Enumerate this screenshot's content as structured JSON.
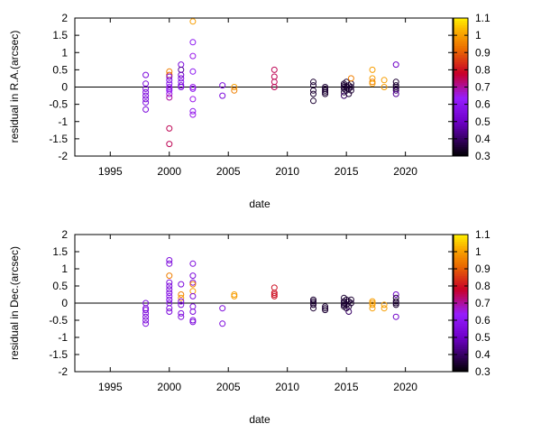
{
  "chart_data": [
    {
      "type": "scatter",
      "xlabel": "date",
      "ylabel": "residual in R.A.(arcsec)",
      "xlim": [
        1992,
        2024
      ],
      "ylim": [
        -2,
        2
      ],
      "xticks": [
        1995,
        2000,
        2005,
        2010,
        2015,
        2020
      ],
      "yticks": [
        -2,
        -1.5,
        -1,
        -0.5,
        0,
        0.5,
        1,
        1.5,
        2
      ],
      "zero_line": true,
      "grid": false,
      "colorbar": {
        "min": 0.3,
        "max": 1.1,
        "ticks": [
          0.3,
          0.4,
          0.5,
          0.6,
          0.7,
          0.8,
          0.9,
          1,
          1.1
        ],
        "placement": "right"
      },
      "points": [
        {
          "x": 1998.0,
          "y": 0.35,
          "c": 0.55
        },
        {
          "x": 1998.0,
          "y": 0.1,
          "c": 0.55
        },
        {
          "x": 1998.0,
          "y": -0.05,
          "c": 0.55
        },
        {
          "x": 1998.0,
          "y": -0.15,
          "c": 0.55
        },
        {
          "x": 1998.0,
          "y": -0.25,
          "c": 0.55
        },
        {
          "x": 1998.0,
          "y": -0.35,
          "c": 0.55
        },
        {
          "x": 1998.0,
          "y": -0.45,
          "c": 0.55
        },
        {
          "x": 1998.0,
          "y": -0.65,
          "c": 0.55
        },
        {
          "x": 2000.0,
          "y": 0.45,
          "c": 0.95
        },
        {
          "x": 2000.0,
          "y": 0.35,
          "c": 0.9
        },
        {
          "x": 2000.0,
          "y": 0.3,
          "c": 0.55
        },
        {
          "x": 2000.0,
          "y": 0.2,
          "c": 0.55
        },
        {
          "x": 2000.0,
          "y": 0.1,
          "c": 0.6
        },
        {
          "x": 2000.0,
          "y": 0.0,
          "c": 0.6
        },
        {
          "x": 2000.0,
          "y": -0.05,
          "c": 0.65
        },
        {
          "x": 2000.0,
          "y": -0.1,
          "c": 0.6
        },
        {
          "x": 2000.0,
          "y": -0.2,
          "c": 0.65
        },
        {
          "x": 2000.0,
          "y": -0.3,
          "c": 0.7
        },
        {
          "x": 2000.0,
          "y": -1.2,
          "c": 0.75
        },
        {
          "x": 2000.0,
          "y": -1.65,
          "c": 0.75
        },
        {
          "x": 2001.0,
          "y": 0.65,
          "c": 0.55
        },
        {
          "x": 2001.0,
          "y": 0.5,
          "c": 0.45
        },
        {
          "x": 2001.0,
          "y": 0.35,
          "c": 0.5
        },
        {
          "x": 2001.0,
          "y": 0.25,
          "c": 0.55
        },
        {
          "x": 2001.0,
          "y": 0.15,
          "c": 0.6
        },
        {
          "x": 2001.0,
          "y": 0.05,
          "c": 0.55
        },
        {
          "x": 2001.0,
          "y": 0.0,
          "c": 0.55
        },
        {
          "x": 2002.0,
          "y": 1.9,
          "c": 1.0
        },
        {
          "x": 2002.0,
          "y": 1.3,
          "c": 0.6
        },
        {
          "x": 2002.0,
          "y": 0.9,
          "c": 0.65
        },
        {
          "x": 2002.0,
          "y": 0.45,
          "c": 0.6
        },
        {
          "x": 2002.0,
          "y": 0.0,
          "c": 0.65
        },
        {
          "x": 2002.0,
          "y": -0.05,
          "c": 0.6
        },
        {
          "x": 2002.0,
          "y": -0.35,
          "c": 0.65
        },
        {
          "x": 2002.0,
          "y": -0.7,
          "c": 0.6
        },
        {
          "x": 2002.0,
          "y": -0.8,
          "c": 0.65
        },
        {
          "x": 2004.5,
          "y": 0.05,
          "c": 0.55
        },
        {
          "x": 2004.5,
          "y": -0.25,
          "c": 0.55
        },
        {
          "x": 2005.5,
          "y": 0.0,
          "c": 1.0
        },
        {
          "x": 2005.5,
          "y": -0.1,
          "c": 0.95
        },
        {
          "x": 2008.9,
          "y": 0.5,
          "c": 0.75
        },
        {
          "x": 2008.9,
          "y": 0.3,
          "c": 0.75
        },
        {
          "x": 2008.9,
          "y": 0.15,
          "c": 0.75
        },
        {
          "x": 2008.9,
          "y": 0.0,
          "c": 0.75
        },
        {
          "x": 2012.2,
          "y": 0.15,
          "c": 0.35
        },
        {
          "x": 2012.2,
          "y": 0.05,
          "c": 0.35
        },
        {
          "x": 2012.2,
          "y": -0.1,
          "c": 0.35
        },
        {
          "x": 2012.2,
          "y": -0.2,
          "c": 0.35
        },
        {
          "x": 2012.2,
          "y": -0.4,
          "c": 0.35
        },
        {
          "x": 2013.2,
          "y": 0.0,
          "c": 0.35
        },
        {
          "x": 2013.2,
          "y": -0.05,
          "c": 0.35
        },
        {
          "x": 2013.2,
          "y": -0.1,
          "c": 0.35
        },
        {
          "x": 2013.2,
          "y": -0.15,
          "c": 0.35
        },
        {
          "x": 2013.2,
          "y": -0.2,
          "c": 0.35
        },
        {
          "x": 2014.8,
          "y": 0.1,
          "c": 0.35
        },
        {
          "x": 2014.8,
          "y": 0.05,
          "c": 0.35
        },
        {
          "x": 2014.8,
          "y": 0.0,
          "c": 0.35
        },
        {
          "x": 2014.8,
          "y": -0.05,
          "c": 0.35
        },
        {
          "x": 2014.8,
          "y": -0.15,
          "c": 0.35
        },
        {
          "x": 2014.8,
          "y": -0.25,
          "c": 0.4
        },
        {
          "x": 2015.0,
          "y": 0.0,
          "c": 0.35
        },
        {
          "x": 2015.0,
          "y": -0.1,
          "c": 0.35
        },
        {
          "x": 2015.0,
          "y": 0.15,
          "c": 0.35
        },
        {
          "x": 2015.2,
          "y": 0.05,
          "c": 0.35
        },
        {
          "x": 2015.2,
          "y": -0.05,
          "c": 0.35
        },
        {
          "x": 2015.2,
          "y": -0.2,
          "c": 0.35
        },
        {
          "x": 2015.4,
          "y": 0.1,
          "c": 0.35
        },
        {
          "x": 2015.4,
          "y": 0.0,
          "c": 0.35
        },
        {
          "x": 2015.4,
          "y": -0.1,
          "c": 0.35
        },
        {
          "x": 2015.4,
          "y": 0.25,
          "c": 0.95
        },
        {
          "x": 2017.2,
          "y": 0.5,
          "c": 1.0
        },
        {
          "x": 2017.2,
          "y": 0.25,
          "c": 1.0
        },
        {
          "x": 2017.2,
          "y": 0.15,
          "c": 0.95
        },
        {
          "x": 2017.2,
          "y": 0.1,
          "c": 1.0
        },
        {
          "x": 2018.2,
          "y": 0.2,
          "c": 1.0
        },
        {
          "x": 2018.2,
          "y": 0.0,
          "c": 1.0
        },
        {
          "x": 2019.2,
          "y": 0.65,
          "c": 0.5
        },
        {
          "x": 2019.2,
          "y": 0.15,
          "c": 0.35
        },
        {
          "x": 2019.2,
          "y": 0.05,
          "c": 0.35
        },
        {
          "x": 2019.2,
          "y": 0.0,
          "c": 0.35
        },
        {
          "x": 2019.2,
          "y": -0.05,
          "c": 0.35
        },
        {
          "x": 2019.2,
          "y": -0.1,
          "c": 0.4
        },
        {
          "x": 2019.2,
          "y": -0.2,
          "c": 0.45
        }
      ]
    },
    {
      "type": "scatter",
      "xlabel": "date",
      "ylabel": "residual in Dec.(arcsec)",
      "xlim": [
        1992,
        2024
      ],
      "ylim": [
        -2,
        2
      ],
      "xticks": [
        1995,
        2000,
        2005,
        2010,
        2015,
        2020
      ],
      "yticks": [
        -2,
        -1.5,
        -1,
        -0.5,
        0,
        0.5,
        1,
        1.5,
        2
      ],
      "zero_line": true,
      "grid": false,
      "colorbar": {
        "min": 0.3,
        "max": 1.1,
        "ticks": [
          0.3,
          0.4,
          0.5,
          0.6,
          0.7,
          0.8,
          0.9,
          1,
          1.1
        ],
        "placement": "right"
      },
      "points": [
        {
          "x": 1998.0,
          "y": 0.0,
          "c": 0.55
        },
        {
          "x": 1998.0,
          "y": -0.15,
          "c": 0.55
        },
        {
          "x": 1998.0,
          "y": -0.2,
          "c": 0.55
        },
        {
          "x": 1998.0,
          "y": -0.3,
          "c": 0.55
        },
        {
          "x": 1998.0,
          "y": -0.4,
          "c": 0.55
        },
        {
          "x": 1998.0,
          "y": -0.5,
          "c": 0.55
        },
        {
          "x": 1998.0,
          "y": -0.6,
          "c": 0.55
        },
        {
          "x": 2000.0,
          "y": 1.25,
          "c": 0.55
        },
        {
          "x": 2000.0,
          "y": 1.15,
          "c": 0.55
        },
        {
          "x": 2000.0,
          "y": 0.8,
          "c": 0.95
        },
        {
          "x": 2000.0,
          "y": 0.6,
          "c": 0.55
        },
        {
          "x": 2000.0,
          "y": 0.5,
          "c": 0.55
        },
        {
          "x": 2000.0,
          "y": 0.4,
          "c": 0.55
        },
        {
          "x": 2000.0,
          "y": 0.3,
          "c": 0.55
        },
        {
          "x": 2000.0,
          "y": 0.2,
          "c": 0.6
        },
        {
          "x": 2000.0,
          "y": 0.1,
          "c": 0.55
        },
        {
          "x": 2000.0,
          "y": 0.0,
          "c": 0.6
        },
        {
          "x": 2000.0,
          "y": -0.15,
          "c": 0.55
        },
        {
          "x": 2000.0,
          "y": -0.25,
          "c": 0.55
        },
        {
          "x": 2001.0,
          "y": 0.55,
          "c": 0.55
        },
        {
          "x": 2001.0,
          "y": 0.25,
          "c": 0.95
        },
        {
          "x": 2001.0,
          "y": 0.15,
          "c": 1.0
        },
        {
          "x": 2001.0,
          "y": 0.05,
          "c": 0.55
        },
        {
          "x": 2001.0,
          "y": -0.05,
          "c": 0.55
        },
        {
          "x": 2001.0,
          "y": -0.3,
          "c": 0.55
        },
        {
          "x": 2001.0,
          "y": -0.4,
          "c": 0.55
        },
        {
          "x": 2002.0,
          "y": 1.15,
          "c": 0.55
        },
        {
          "x": 2002.0,
          "y": 0.8,
          "c": 0.55
        },
        {
          "x": 2002.0,
          "y": 0.6,
          "c": 0.55
        },
        {
          "x": 2002.0,
          "y": 0.55,
          "c": 0.95
        },
        {
          "x": 2002.0,
          "y": 0.35,
          "c": 1.0
        },
        {
          "x": 2002.0,
          "y": 0.2,
          "c": 0.55
        },
        {
          "x": 2002.0,
          "y": -0.1,
          "c": 0.55
        },
        {
          "x": 2002.0,
          "y": -0.25,
          "c": 0.55
        },
        {
          "x": 2002.0,
          "y": -0.5,
          "c": 0.55
        },
        {
          "x": 2002.0,
          "y": -0.55,
          "c": 0.55
        },
        {
          "x": 2004.5,
          "y": -0.15,
          "c": 0.55
        },
        {
          "x": 2004.5,
          "y": -0.6,
          "c": 0.55
        },
        {
          "x": 2005.5,
          "y": 0.25,
          "c": 1.0
        },
        {
          "x": 2005.5,
          "y": 0.2,
          "c": 1.0
        },
        {
          "x": 2008.9,
          "y": 0.45,
          "c": 0.8
        },
        {
          "x": 2008.9,
          "y": 0.3,
          "c": 0.8
        },
        {
          "x": 2008.9,
          "y": 0.25,
          "c": 0.8
        },
        {
          "x": 2008.9,
          "y": 0.2,
          "c": 0.8
        },
        {
          "x": 2012.2,
          "y": 0.1,
          "c": 0.35
        },
        {
          "x": 2012.2,
          "y": 0.05,
          "c": 0.35
        },
        {
          "x": 2012.2,
          "y": 0.0,
          "c": 0.35
        },
        {
          "x": 2012.2,
          "y": -0.05,
          "c": 0.35
        },
        {
          "x": 2012.2,
          "y": -0.15,
          "c": 0.35
        },
        {
          "x": 2013.2,
          "y": -0.1,
          "c": 0.35
        },
        {
          "x": 2013.2,
          "y": -0.15,
          "c": 0.35
        },
        {
          "x": 2013.2,
          "y": -0.2,
          "c": 0.35
        },
        {
          "x": 2014.8,
          "y": 0.15,
          "c": 0.35
        },
        {
          "x": 2014.8,
          "y": 0.05,
          "c": 0.35
        },
        {
          "x": 2014.8,
          "y": 0.0,
          "c": 0.35
        },
        {
          "x": 2014.8,
          "y": -0.05,
          "c": 0.35
        },
        {
          "x": 2014.8,
          "y": -0.1,
          "c": 0.35
        },
        {
          "x": 2015.0,
          "y": 0.1,
          "c": 0.35
        },
        {
          "x": 2015.0,
          "y": -0.05,
          "c": 0.35
        },
        {
          "x": 2015.0,
          "y": -0.15,
          "c": 0.35
        },
        {
          "x": 2015.2,
          "y": 0.05,
          "c": 0.35
        },
        {
          "x": 2015.2,
          "y": -0.1,
          "c": 0.35
        },
        {
          "x": 2015.2,
          "y": -0.25,
          "c": 0.4
        },
        {
          "x": 2015.4,
          "y": 0.0,
          "c": 0.35
        },
        {
          "x": 2015.4,
          "y": 0.1,
          "c": 0.35
        },
        {
          "x": 2017.2,
          "y": 0.05,
          "c": 1.0
        },
        {
          "x": 2017.2,
          "y": 0.0,
          "c": 1.0
        },
        {
          "x": 2017.2,
          "y": -0.05,
          "c": 1.0
        },
        {
          "x": 2017.2,
          "y": -0.15,
          "c": 1.0
        },
        {
          "x": 2018.2,
          "y": -0.05,
          "c": 1.0
        },
        {
          "x": 2018.2,
          "y": -0.15,
          "c": 1.0
        },
        {
          "x": 2019.2,
          "y": 0.25,
          "c": 0.5
        },
        {
          "x": 2019.2,
          "y": 0.15,
          "c": 0.35
        },
        {
          "x": 2019.2,
          "y": 0.05,
          "c": 0.35
        },
        {
          "x": 2019.2,
          "y": 0.0,
          "c": 0.35
        },
        {
          "x": 2019.2,
          "y": -0.05,
          "c": 0.35
        },
        {
          "x": 2019.2,
          "y": -0.4,
          "c": 0.5
        }
      ]
    }
  ]
}
